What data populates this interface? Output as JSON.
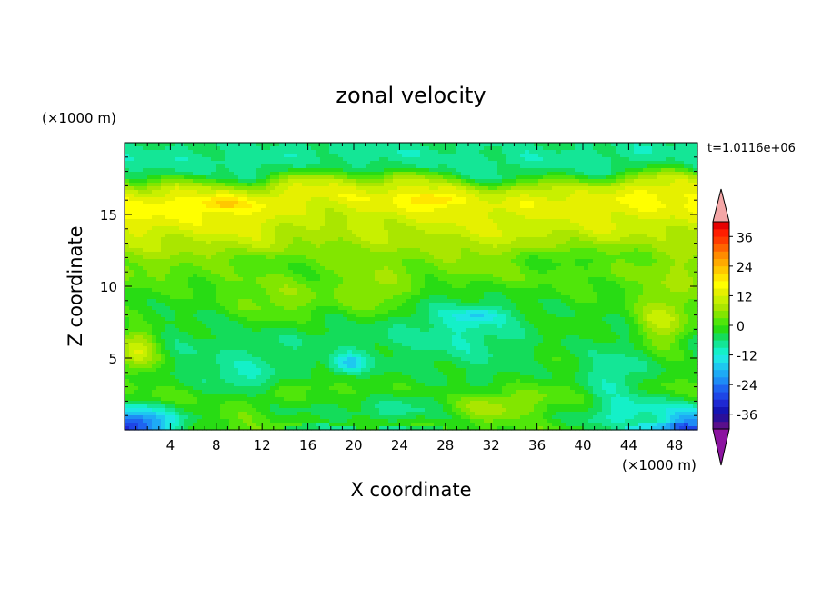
{
  "chart_data": {
    "type": "heatmap",
    "title": "zonal velocity",
    "xlabel": "X coordinate",
    "ylabel": "Z coordinate",
    "x_unit": "(×1000 m)",
    "y_unit": "(×1000 m)",
    "annotation": "t=1.0116e+06",
    "xlim": [
      0,
      50
    ],
    "ylim": [
      0,
      20
    ],
    "x_ticks": [
      4,
      8,
      12,
      16,
      20,
      24,
      28,
      32,
      36,
      40,
      44,
      48
    ],
    "y_ticks": [
      5,
      10,
      15
    ],
    "colorbar": {
      "levels": [
        -42,
        -39,
        -36,
        -33,
        -30,
        -27,
        -24,
        -21,
        -18,
        -15,
        -12,
        -9,
        -6,
        -3,
        0,
        3,
        6,
        9,
        12,
        15,
        18,
        21,
        24,
        27,
        30,
        33,
        36,
        39,
        42
      ],
      "colors": [
        "#5a0f8c",
        "#2a0f9a",
        "#1414b4",
        "#1e28d2",
        "#1e46e6",
        "#1e64f0",
        "#1e8cf5",
        "#1eaaf5",
        "#1ec8f0",
        "#1ee6e6",
        "#14f0c8",
        "#14e696",
        "#14dc5a",
        "#28dc14",
        "#50e60a",
        "#82e600",
        "#aae600",
        "#c8f000",
        "#e6f000",
        "#ffff00",
        "#ffe600",
        "#ffc800",
        "#ffaa00",
        "#ff8c00",
        "#ff6400",
        "#ff3c00",
        "#ff1e00",
        "#e60000"
      ],
      "under_color": "#8c14a0",
      "over_color": "#f4a6a6",
      "tick_labels": [
        "36",
        "24",
        "12",
        "0",
        "-12",
        "-24",
        "-36"
      ],
      "tick_values": [
        36,
        24,
        12,
        0,
        -12,
        -24,
        -36
      ]
    },
    "field_features": {
      "base_profile": [
        [
          0,
          0
        ],
        [
          1,
          -4
        ],
        [
          2.5,
          2
        ],
        [
          4,
          -3
        ],
        [
          6,
          -5
        ],
        [
          8,
          -3
        ],
        [
          10,
          0
        ],
        [
          11,
          3
        ],
        [
          12,
          5
        ],
        [
          13.5,
          10
        ],
        [
          15,
          15
        ],
        [
          16,
          16
        ],
        [
          17,
          10
        ],
        [
          18,
          -5
        ],
        [
          19,
          -8
        ],
        [
          20,
          -6
        ]
      ],
      "blobs": [
        {
          "x": 0,
          "z": 0,
          "sx": 4,
          "sz": 1.5,
          "amp": -30
        },
        {
          "x": 50,
          "z": 0,
          "sx": 4,
          "sz": 1.5,
          "amp": -24
        },
        {
          "x": 1,
          "z": 5.5,
          "sx": 2,
          "sz": 1.5,
          "amp": 16
        },
        {
          "x": 19.5,
          "z": 4.6,
          "sx": 1.5,
          "sz": 0.7,
          "amp": -13
        },
        {
          "x": 30,
          "z": 7.5,
          "sx": 5,
          "sz": 2,
          "amp": -6
        },
        {
          "x": 31,
          "z": 8,
          "sx": 2,
          "sz": 0.5,
          "amp": -8
        },
        {
          "x": 47,
          "z": 7.5,
          "sx": 2.5,
          "sz": 2,
          "amp": 14
        },
        {
          "x": 32,
          "z": 1.3,
          "sx": 5,
          "sz": 1.2,
          "amp": 9
        },
        {
          "x": 10,
          "z": 0.5,
          "sx": 4,
          "sz": 1,
          "amp": 5
        },
        {
          "x": 43,
          "z": 2.5,
          "sx": 3,
          "sz": 2.5,
          "amp": -9
        },
        {
          "x": 26,
          "z": 2,
          "sx": 6,
          "sz": 1.5,
          "amp": -5
        },
        {
          "x": 10,
          "z": 3.5,
          "sx": 4,
          "sz": 1.5,
          "amp": -6
        },
        {
          "x": 14,
          "z": 9,
          "sx": 4,
          "sz": 1.5,
          "amp": 7
        },
        {
          "x": 22,
          "z": 9.5,
          "sx": 3,
          "sz": 1.5,
          "amp": 8
        },
        {
          "x": 48,
          "z": 10.5,
          "sx": 3,
          "sz": 1.5,
          "amp": 5
        },
        {
          "x": 8.5,
          "z": 15.8,
          "sx": 2,
          "sz": 0.5,
          "amp": 8
        },
        {
          "x": 27,
          "z": 16,
          "sx": 2,
          "sz": 0.5,
          "amp": 8
        },
        {
          "x": 18,
          "z": 15,
          "sx": 6,
          "sz": 1.5,
          "amp": -4
        },
        {
          "x": 35,
          "z": 15,
          "sx": 8,
          "sz": 1.5,
          "amp": -3
        },
        {
          "x": 39,
          "z": 12,
          "sx": 5,
          "sz": 1,
          "amp": -6
        },
        {
          "x": 12,
          "z": 11.5,
          "sx": 5,
          "sz": 1,
          "amp": -4
        },
        {
          "x": 38,
          "z": 6,
          "sx": 4,
          "sz": 2,
          "amp": 3
        }
      ]
    }
  }
}
